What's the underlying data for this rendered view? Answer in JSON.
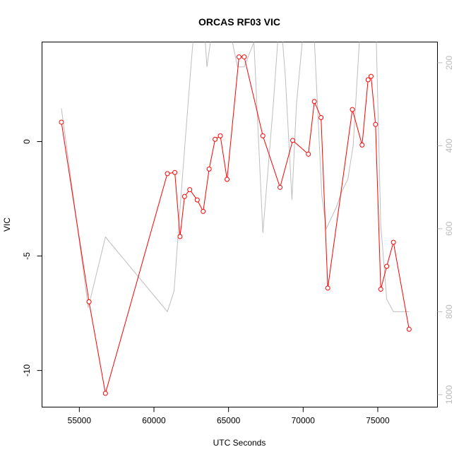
{
  "chart_data": {
    "type": "line",
    "title": "ORCAS RF03 VIC",
    "xlabel": "UTC Seconds",
    "ylabel": "VIC",
    "xlim": [
      52500,
      79000
    ],
    "ylim": [
      -11.6,
      4.35
    ],
    "y2lim": [
      1030,
      150
    ],
    "x_ticks": [
      55000,
      60000,
      65000,
      70000,
      75000
    ],
    "y_ticks": [
      -10,
      -5,
      0
    ],
    "y2_ticks": [
      200,
      400,
      600,
      800,
      1000
    ],
    "colors": {
      "primary": "#ff0000",
      "secondary": "#bebebe",
      "axis": "#000000",
      "secondary_axis": "#bbbbbb"
    },
    "series": [
      {
        "role": "primary",
        "x": [
          53800,
          55650,
          56750,
          60900,
          61400,
          61750,
          62050,
          62400,
          62900,
          63300,
          63700,
          64100,
          64450,
          64900,
          65700,
          66050,
          67300,
          68450,
          69300,
          70350,
          70750,
          71200,
          71650,
          73300,
          73950,
          74350,
          74550,
          74850,
          75200,
          75600,
          76050,
          77100
        ],
        "y": [
          0.85,
          -7.0,
          -11.0,
          -1.4,
          -1.35,
          -4.15,
          -2.4,
          -2.1,
          -2.55,
          -3.05,
          -1.2,
          0.1,
          0.25,
          -1.65,
          3.7,
          3.7,
          0.25,
          -2.0,
          0.05,
          -0.55,
          1.75,
          1.05,
          -6.4,
          1.4,
          -0.15,
          2.7,
          2.85,
          0.75,
          -6.45,
          -5.45,
          -4.4,
          -8.2
        ]
      },
      {
        "role": "secondary",
        "x": [
          53800,
          55600,
          56750,
          60900,
          61350,
          61750,
          62050,
          62500,
          62800,
          63300,
          63550,
          64100,
          64400,
          64800,
          65600,
          66050,
          66700,
          67300,
          68000,
          68450,
          68800,
          69250,
          69550,
          70150,
          70650,
          71250,
          71550,
          72200,
          72600,
          73000,
          73350,
          73900,
          74400,
          74850,
          75200,
          75600,
          76050,
          77100
        ],
        "y": [
          310,
          790,
          620,
          800,
          750,
          550,
          410,
          200,
          70,
          70,
          210,
          70,
          70,
          70,
          210,
          210,
          150,
          610,
          300,
          70,
          230,
          530,
          300,
          70,
          70,
          520,
          600,
          550,
          510,
          480,
          400,
          70,
          70,
          70,
          590,
          770,
          800,
          800
        ]
      }
    ]
  }
}
